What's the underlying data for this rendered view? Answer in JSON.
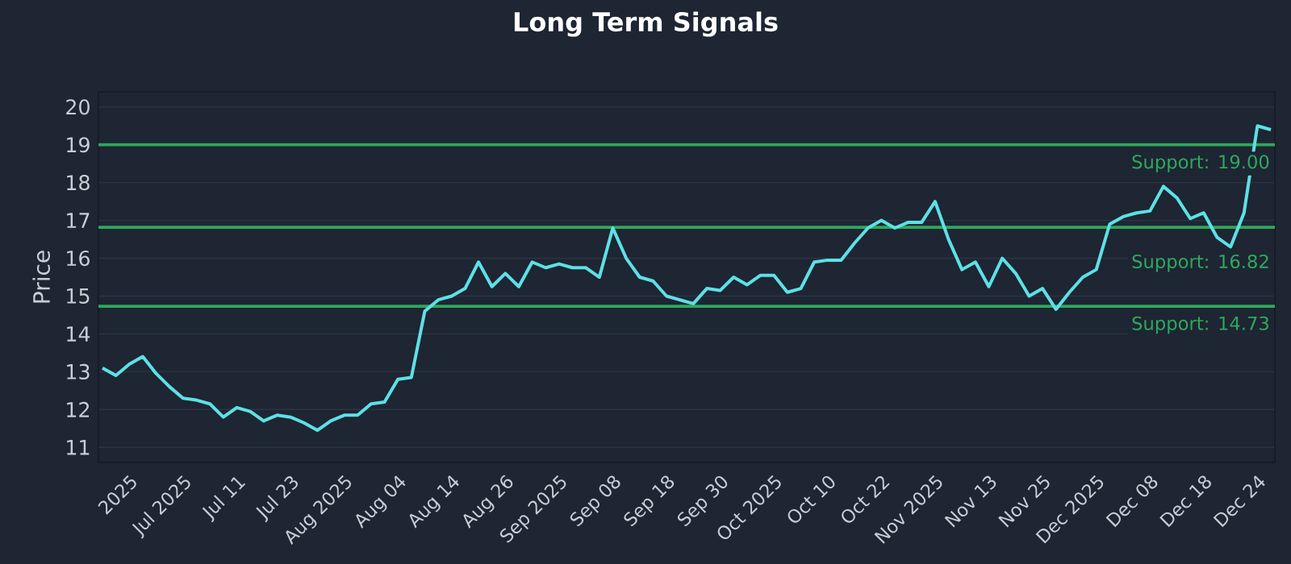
{
  "chart_data": {
    "type": "line",
    "title": "Long Term Signals",
    "ylabel": "Price",
    "categories": [
      null,
      null,
      "2025",
      null,
      null,
      null,
      "Jul 2025",
      null,
      null,
      null,
      "Jul 11",
      null,
      null,
      null,
      "Jul 23",
      null,
      null,
      null,
      "Aug 2025",
      null,
      null,
      null,
      "Aug 04",
      null,
      null,
      null,
      "Aug 14",
      null,
      null,
      null,
      "Aug 26",
      null,
      null,
      null,
      "Sep 2025",
      null,
      null,
      null,
      "Sep 08",
      null,
      null,
      null,
      "Sep 18",
      null,
      null,
      null,
      "Sep 30",
      null,
      null,
      null,
      "Oct 2025",
      null,
      null,
      null,
      "Oct 10",
      null,
      null,
      null,
      "Oct 22",
      null,
      null,
      null,
      "Nov 2025",
      null,
      null,
      null,
      "Nov 13",
      null,
      null,
      null,
      "Nov 25",
      null,
      null,
      null,
      "Dec 2025",
      null,
      null,
      null,
      "Dec 08",
      null,
      null,
      null,
      "Dec 18",
      null,
      null,
      null,
      "Dec 24",
      null
    ],
    "series": [
      {
        "color": "#5ce1e6",
        "values": [
          13.1,
          12.9,
          13.2,
          13.4,
          12.95,
          12.6,
          12.3,
          12.25,
          12.15,
          11.8,
          12.05,
          11.95,
          11.7,
          11.85,
          11.8,
          11.65,
          11.45,
          11.7,
          11.85,
          11.85,
          12.15,
          12.2,
          12.8,
          12.85,
          14.6,
          14.9,
          15.0,
          15.2,
          15.9,
          15.25,
          15.6,
          15.25,
          15.9,
          15.75,
          15.85,
          15.75,
          15.75,
          15.5,
          16.8,
          16.0,
          15.5,
          15.4,
          15.0,
          14.9,
          14.8,
          15.2,
          15.15,
          15.5,
          15.3,
          15.55,
          15.55,
          15.1,
          15.2,
          15.9,
          15.95,
          15.95,
          16.4,
          16.8,
          17.0,
          16.8,
          16.95,
          16.95,
          17.5,
          16.5,
          15.7,
          15.9,
          15.25,
          16.0,
          15.6,
          15.0,
          15.2,
          14.65,
          15.1,
          15.5,
          15.7,
          16.9,
          17.1,
          17.2,
          17.25,
          17.9,
          17.6,
          17.05,
          17.2,
          16.55,
          16.3,
          17.2,
          19.5,
          19.4
        ]
      }
    ],
    "ylim": [
      10.6,
      20.4
    ],
    "yticks": [
      11,
      12,
      13,
      14,
      15,
      16,
      17,
      18,
      19,
      20
    ],
    "grid": "y",
    "ref_lines": [
      {
        "axis": "y",
        "value": 19.0,
        "label": "Support: 19.00",
        "color": "#2ea95c"
      },
      {
        "axis": "y",
        "value": 16.82,
        "label": "Support: 16.82",
        "color": "#2ea95c"
      },
      {
        "axis": "y",
        "value": 14.73,
        "label": "Support: 14.73",
        "color": "#2ea95c"
      }
    ]
  }
}
